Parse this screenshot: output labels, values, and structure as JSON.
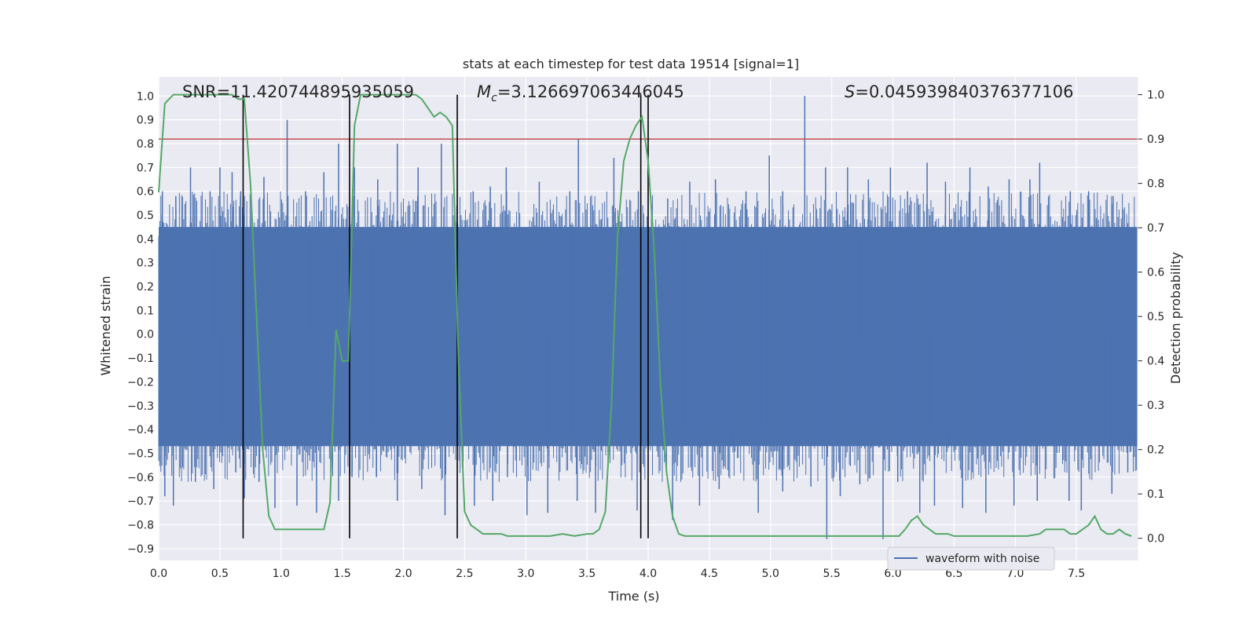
{
  "chart_data": {
    "type": "line",
    "title": "stats at each timestep for test data 19514 [signal=1]",
    "xlabel": "Time (s)",
    "ylabel": "Whitened strain",
    "y2label": "Detection probability",
    "xlim": [
      0.0,
      8.0
    ],
    "ylim": [
      -0.95,
      1.08
    ],
    "y2lim": [
      -0.05,
      1.04
    ],
    "x_ticks": [
      "0.0",
      "0.5",
      "1.0",
      "1.5",
      "2.0",
      "2.5",
      "3.0",
      "3.5",
      "4.0",
      "4.5",
      "5.0",
      "5.5",
      "6.0",
      "6.5",
      "7.0",
      "7.5"
    ],
    "y_ticks": [
      "-0.9",
      "-0.8",
      "-0.7",
      "-0.6",
      "-0.5",
      "-0.4",
      "-0.3",
      "-0.2",
      "-0.1",
      "0.0",
      "0.1",
      "0.2",
      "0.3",
      "0.4",
      "0.5",
      "0.6",
      "0.7",
      "0.8",
      "0.9",
      "1.0"
    ],
    "y2_ticks": [
      "0.0",
      "0.1",
      "0.2",
      "0.3",
      "0.4",
      "0.5",
      "0.6",
      "0.7",
      "0.8",
      "0.9",
      "1.0"
    ],
    "grid": true,
    "legend_placement": "lower-right",
    "legend": [
      "waveform with noise"
    ],
    "annotations": {
      "snr": "SNR=11.420744895935059",
      "mc_symbol": "M",
      "mc_sub": "c",
      "mc_value": "=3.126697063446045",
      "s_symbol": "S",
      "s_value": "=0.045939840376377106"
    },
    "threshold_line": {
      "axis": "y2",
      "value": 0.9,
      "color": "#c44e52"
    },
    "vertical_markers": [
      0.69,
      1.56,
      2.44,
      3.94,
      4.0
    ],
    "colors": {
      "waveform": "#4c72b0",
      "probability": "#55a868",
      "threshold": "#c44e52",
      "markers": "#000000",
      "plot_bg": "#eaeaf2",
      "grid": "#ffffff"
    },
    "waveform_envelope": {
      "name": "waveform with noise",
      "band_upper": 0.45,
      "band_lower": -0.47,
      "positive_spikes": [
        [
          0.03,
          0.6
        ],
        [
          0.14,
          0.58
        ],
        [
          0.26,
          0.7
        ],
        [
          0.42,
          0.6
        ],
        [
          0.5,
          0.7
        ],
        [
          0.6,
          0.68
        ],
        [
          0.67,
          0.6
        ],
        [
          0.86,
          0.66
        ],
        [
          1.05,
          0.9
        ],
        [
          1.2,
          0.6
        ],
        [
          1.35,
          0.68
        ],
        [
          1.47,
          0.8
        ],
        [
          1.6,
          0.7
        ],
        [
          1.79,
          0.65
        ],
        [
          1.95,
          0.8
        ],
        [
          2.12,
          0.7
        ],
        [
          2.31,
          0.8
        ],
        [
          2.57,
          0.6
        ],
        [
          2.71,
          0.62
        ],
        [
          2.84,
          0.7
        ],
        [
          3.11,
          0.64
        ],
        [
          3.36,
          0.6
        ],
        [
          3.43,
          0.82
        ],
        [
          3.72,
          0.74
        ],
        [
          3.92,
          0.6
        ],
        [
          4.16,
          0.57
        ],
        [
          4.34,
          0.64
        ],
        [
          4.55,
          0.65
        ],
        [
          4.8,
          0.6
        ],
        [
          4.99,
          0.75
        ],
        [
          5.1,
          0.6
        ],
        [
          5.28,
          1.0
        ],
        [
          5.45,
          0.7
        ],
        [
          5.63,
          0.7
        ],
        [
          5.8,
          0.65
        ],
        [
          5.98,
          0.7
        ],
        [
          6.12,
          0.6
        ],
        [
          6.28,
          0.72
        ],
        [
          6.43,
          0.64
        ],
        [
          6.63,
          0.7
        ],
        [
          6.78,
          0.62
        ],
        [
          6.95,
          0.65
        ],
        [
          7.12,
          0.65
        ],
        [
          7.2,
          0.72
        ],
        [
          7.45,
          0.6
        ],
        [
          7.6,
          0.6
        ],
        [
          7.8,
          0.58
        ]
      ],
      "negative_spikes": [
        [
          0.05,
          -0.68
        ],
        [
          0.12,
          -0.72
        ],
        [
          0.3,
          -0.62
        ],
        [
          0.45,
          -0.65
        ],
        [
          0.63,
          -0.58
        ],
        [
          0.7,
          -0.69
        ],
        [
          0.82,
          -0.62
        ],
        [
          0.95,
          -0.73
        ],
        [
          1.13,
          -0.72
        ],
        [
          1.29,
          -0.75
        ],
        [
          1.47,
          -0.7
        ],
        [
          1.58,
          -0.6
        ],
        [
          1.78,
          -0.6
        ],
        [
          1.95,
          -0.7
        ],
        [
          2.15,
          -0.65
        ],
        [
          2.34,
          -0.76
        ],
        [
          2.58,
          -0.72
        ],
        [
          2.73,
          -0.7
        ],
        [
          2.85,
          -0.6
        ],
        [
          3.01,
          -0.76
        ],
        [
          3.18,
          -0.75
        ],
        [
          3.42,
          -0.7
        ],
        [
          3.57,
          -0.75
        ],
        [
          3.91,
          -0.74
        ],
        [
          4.2,
          -0.78
        ],
        [
          4.42,
          -0.72
        ],
        [
          4.58,
          -0.65
        ],
        [
          4.9,
          -0.75
        ],
        [
          5.1,
          -0.66
        ],
        [
          5.33,
          -0.64
        ],
        [
          5.46,
          -0.86
        ],
        [
          5.57,
          -0.68
        ],
        [
          5.73,
          -0.63
        ],
        [
          5.92,
          -0.86
        ],
        [
          6.04,
          -0.62
        ],
        [
          6.22,
          -0.75
        ],
        [
          6.34,
          -0.72
        ],
        [
          6.57,
          -0.73
        ],
        [
          6.76,
          -0.75
        ],
        [
          6.99,
          -0.72
        ],
        [
          7.18,
          -0.7
        ],
        [
          7.44,
          -0.7
        ],
        [
          7.54,
          -0.74
        ],
        [
          7.79,
          -0.67
        ],
        [
          7.92,
          -0.58
        ]
      ]
    },
    "series": [
      {
        "name": "",
        "axis": "y2",
        "x": [
          0.0,
          0.05,
          0.12,
          0.2,
          0.3,
          0.4,
          0.5,
          0.6,
          0.65,
          0.7,
          0.75,
          0.8,
          0.85,
          0.9,
          0.95,
          1.0,
          1.05,
          1.1,
          1.15,
          1.2,
          1.25,
          1.3,
          1.35,
          1.4,
          1.45,
          1.5,
          1.55,
          1.6,
          1.65,
          1.7,
          1.75,
          1.8,
          1.85,
          1.9,
          1.95,
          2.0,
          2.05,
          2.1,
          2.15,
          2.2,
          2.25,
          2.3,
          2.35,
          2.4,
          2.45,
          2.5,
          2.55,
          2.6,
          2.65,
          2.7,
          2.75,
          2.8,
          2.85,
          2.9,
          2.95,
          3.0,
          3.1,
          3.2,
          3.3,
          3.4,
          3.5,
          3.55,
          3.6,
          3.65,
          3.7,
          3.75,
          3.8,
          3.85,
          3.9,
          3.95,
          4.0,
          4.05,
          4.1,
          4.15,
          4.2,
          4.25,
          4.3,
          4.35,
          4.4,
          4.45,
          4.5,
          4.6,
          4.7,
          4.8,
          4.9,
          5.0,
          5.1,
          5.2,
          5.3,
          5.4,
          5.5,
          5.6,
          5.7,
          5.8,
          5.9,
          6.0,
          6.05,
          6.1,
          6.15,
          6.2,
          6.25,
          6.3,
          6.35,
          6.4,
          6.45,
          6.5,
          6.6,
          6.7,
          6.8,
          6.9,
          7.0,
          7.1,
          7.2,
          7.25,
          7.3,
          7.35,
          7.4,
          7.45,
          7.5,
          7.55,
          7.6,
          7.65,
          7.7,
          7.75,
          7.8,
          7.85,
          7.9,
          7.95
        ],
        "values": [
          0.78,
          0.98,
          1.0,
          1.0,
          1.0,
          1.0,
          1.0,
          1.0,
          0.99,
          0.99,
          0.8,
          0.5,
          0.2,
          0.05,
          0.02,
          0.02,
          0.02,
          0.02,
          0.02,
          0.02,
          0.02,
          0.02,
          0.02,
          0.08,
          0.47,
          0.4,
          0.4,
          0.93,
          1.0,
          1.0,
          1.0,
          1.0,
          1.0,
          1.0,
          1.0,
          1.0,
          1.0,
          1.0,
          0.99,
          0.97,
          0.95,
          0.96,
          0.95,
          0.93,
          0.4,
          0.06,
          0.03,
          0.02,
          0.01,
          0.01,
          0.01,
          0.01,
          0.005,
          0.005,
          0.005,
          0.005,
          0.005,
          0.005,
          0.01,
          0.005,
          0.01,
          0.01,
          0.02,
          0.06,
          0.3,
          0.68,
          0.85,
          0.9,
          0.93,
          0.95,
          0.85,
          0.65,
          0.35,
          0.15,
          0.05,
          0.01,
          0.005,
          0.005,
          0.005,
          0.005,
          0.005,
          0.005,
          0.005,
          0.005,
          0.005,
          0.005,
          0.005,
          0.005,
          0.005,
          0.005,
          0.005,
          0.005,
          0.005,
          0.005,
          0.005,
          0.005,
          0.005,
          0.02,
          0.04,
          0.05,
          0.03,
          0.02,
          0.01,
          0.01,
          0.01,
          0.005,
          0.005,
          0.005,
          0.005,
          0.005,
          0.005,
          0.005,
          0.01,
          0.02,
          0.02,
          0.02,
          0.02,
          0.01,
          0.01,
          0.02,
          0.03,
          0.05,
          0.02,
          0.01,
          0.01,
          0.02,
          0.01,
          0.005
        ]
      }
    ]
  }
}
